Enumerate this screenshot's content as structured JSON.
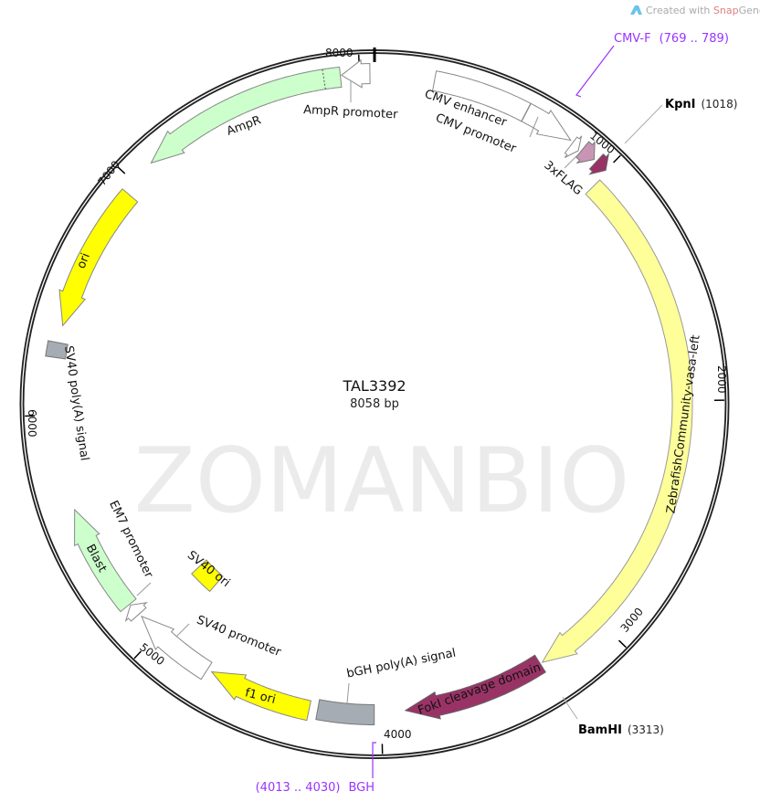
{
  "credit": {
    "prefix": "Created with ",
    "brand_snap": "Snap",
    "brand_gene": "Gene®",
    "logo_icon": "snapgene-logo-icon"
  },
  "watermark": "ZOMANBIO",
  "plasmid": {
    "name": "TAL3392",
    "length_label": "8058 bp",
    "length": 8058
  },
  "ticks": [
    {
      "pos": 1000,
      "label": "1000"
    },
    {
      "pos": 2000,
      "label": "2000"
    },
    {
      "pos": 3000,
      "label": "3000"
    },
    {
      "pos": 4000,
      "label": "4000"
    },
    {
      "pos": 5000,
      "label": "5000"
    },
    {
      "pos": 6000,
      "label": "6000"
    },
    {
      "pos": 7000,
      "label": "7000"
    },
    {
      "pos": 8000,
      "label": "8000"
    }
  ],
  "features": [
    {
      "label": "CMV enhancer",
      "start": 235,
      "end": 614,
      "direction": "none",
      "fill": "#ffffff",
      "stroke": "#888888"
    },
    {
      "label": "CMV promoter",
      "start": 615,
      "end": 820,
      "direction": "forward",
      "fill": "#ffffff",
      "stroke": "#888888"
    },
    {
      "label": "",
      "start": 832,
      "end": 868,
      "direction": "forward",
      "fill": "#ffffff",
      "stroke": "#888888"
    },
    {
      "label": "3xFLAG",
      "start": 878,
      "end": 938,
      "direction": "forward",
      "fill": "#c896b4",
      "stroke": "#777777"
    },
    {
      "label": "",
      "start": 950,
      "end": 1000,
      "direction": "forward",
      "fill": "#993366",
      "stroke": "#666666"
    },
    {
      "label": "ZebrafishCommunity-vasa-left",
      "start": 1010,
      "end": 3290,
      "direction": "forward",
      "fill": "#ffff99",
      "stroke": "#999999"
    },
    {
      "label": "FokI cleavage domain",
      "start": 3300,
      "end": 3900,
      "direction": "forward",
      "fill": "#993366",
      "stroke": "#666666"
    },
    {
      "label": "bGH poly(A) signal",
      "start": 4030,
      "end": 4265,
      "direction": "none",
      "fill": "#a6acb3",
      "stroke": "#777777"
    },
    {
      "label": "f1 ori",
      "start": 4300,
      "end": 4730,
      "direction": "forward",
      "fill": "#ffff00",
      "stroke": "#888888"
    },
    {
      "label": "SV40 promoter",
      "start": 4750,
      "end": 5096,
      "direction": "forward",
      "fill": "#ffffff",
      "stroke": "#888888"
    },
    {
      "label": "SV40 ori",
      "start": 4955,
      "end": 5085,
      "direction": "none",
      "fill": "#ffff00",
      "stroke": "#888888"
    },
    {
      "label": "EM7 promoter",
      "start": 5110,
      "end": 5160,
      "direction": "forward",
      "fill": "#ffffff",
      "stroke": "#888888"
    },
    {
      "label": "Blast",
      "start": 5165,
      "end": 5610,
      "direction": "forward",
      "fill": "#ccffcc",
      "stroke": "#888888"
    },
    {
      "label": "SV40 poly(A) signal",
      "start": 6230,
      "end": 6290,
      "direction": "none",
      "fill": "#a6acb3",
      "stroke": "#777777"
    },
    {
      "label": "ori",
      "start": 6360,
      "end": 6950,
      "direction": "reverse",
      "fill": "#ffff00",
      "stroke": "#888888"
    },
    {
      "label": "AmpR",
      "start": 7100,
      "end": 7925,
      "direction": "reverse",
      "fill": "#ccffcc",
      "stroke": "#888888"
    },
    {
      "label": "AmpR promoter",
      "start": 7930,
      "end": 8040,
      "direction": "reverse",
      "fill": "#ffffff",
      "stroke": "#888888"
    }
  ],
  "enzymes": [
    {
      "name": "KpnI",
      "position": "(1018)",
      "site": 1018
    },
    {
      "name": "BamHI",
      "position": "(3313)",
      "site": 3313
    }
  ],
  "primers": [
    {
      "name": "CMV-F",
      "range": "(769 .. 789)",
      "start": 769,
      "end": 789,
      "color": "#9933ff"
    },
    {
      "name": "BGH",
      "range": "(4013 .. 4030)",
      "start": 4013,
      "end": 4030,
      "color": "#9933ff"
    }
  ]
}
